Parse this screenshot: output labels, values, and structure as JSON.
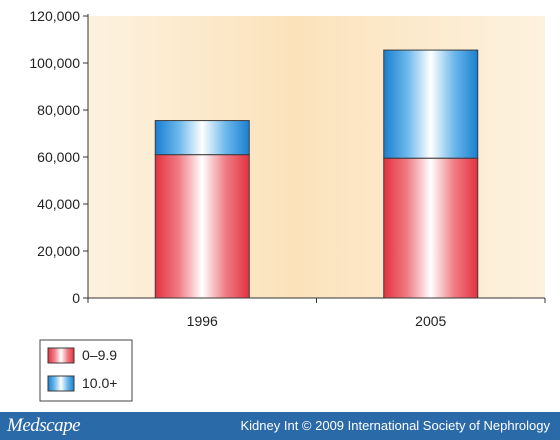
{
  "chart_data": {
    "type": "bar",
    "stacked": true,
    "categories": [
      "1996",
      "2005"
    ],
    "series": [
      {
        "name": "0–9.9",
        "values": [
          61000,
          59500
        ],
        "color": "#e8505b"
      },
      {
        "name": "10.0+",
        "values": [
          14500,
          46000
        ],
        "color": "#2a8fd6"
      }
    ],
    "title": "",
    "xlabel": "",
    "ylabel": "",
    "ylim": [
      0,
      120000
    ],
    "yticks": [
      0,
      20000,
      40000,
      60000,
      80000,
      100000,
      120000
    ],
    "ytick_labels": [
      "0",
      "20,000",
      "40,000",
      "60,000",
      "80,000",
      "100,000",
      "120,000"
    ],
    "legend_position": "bottom-left",
    "grid": false
  },
  "footer": {
    "logo": "Medscape",
    "credit": "Kidney Int © 2009 International Society of Nephrology"
  }
}
